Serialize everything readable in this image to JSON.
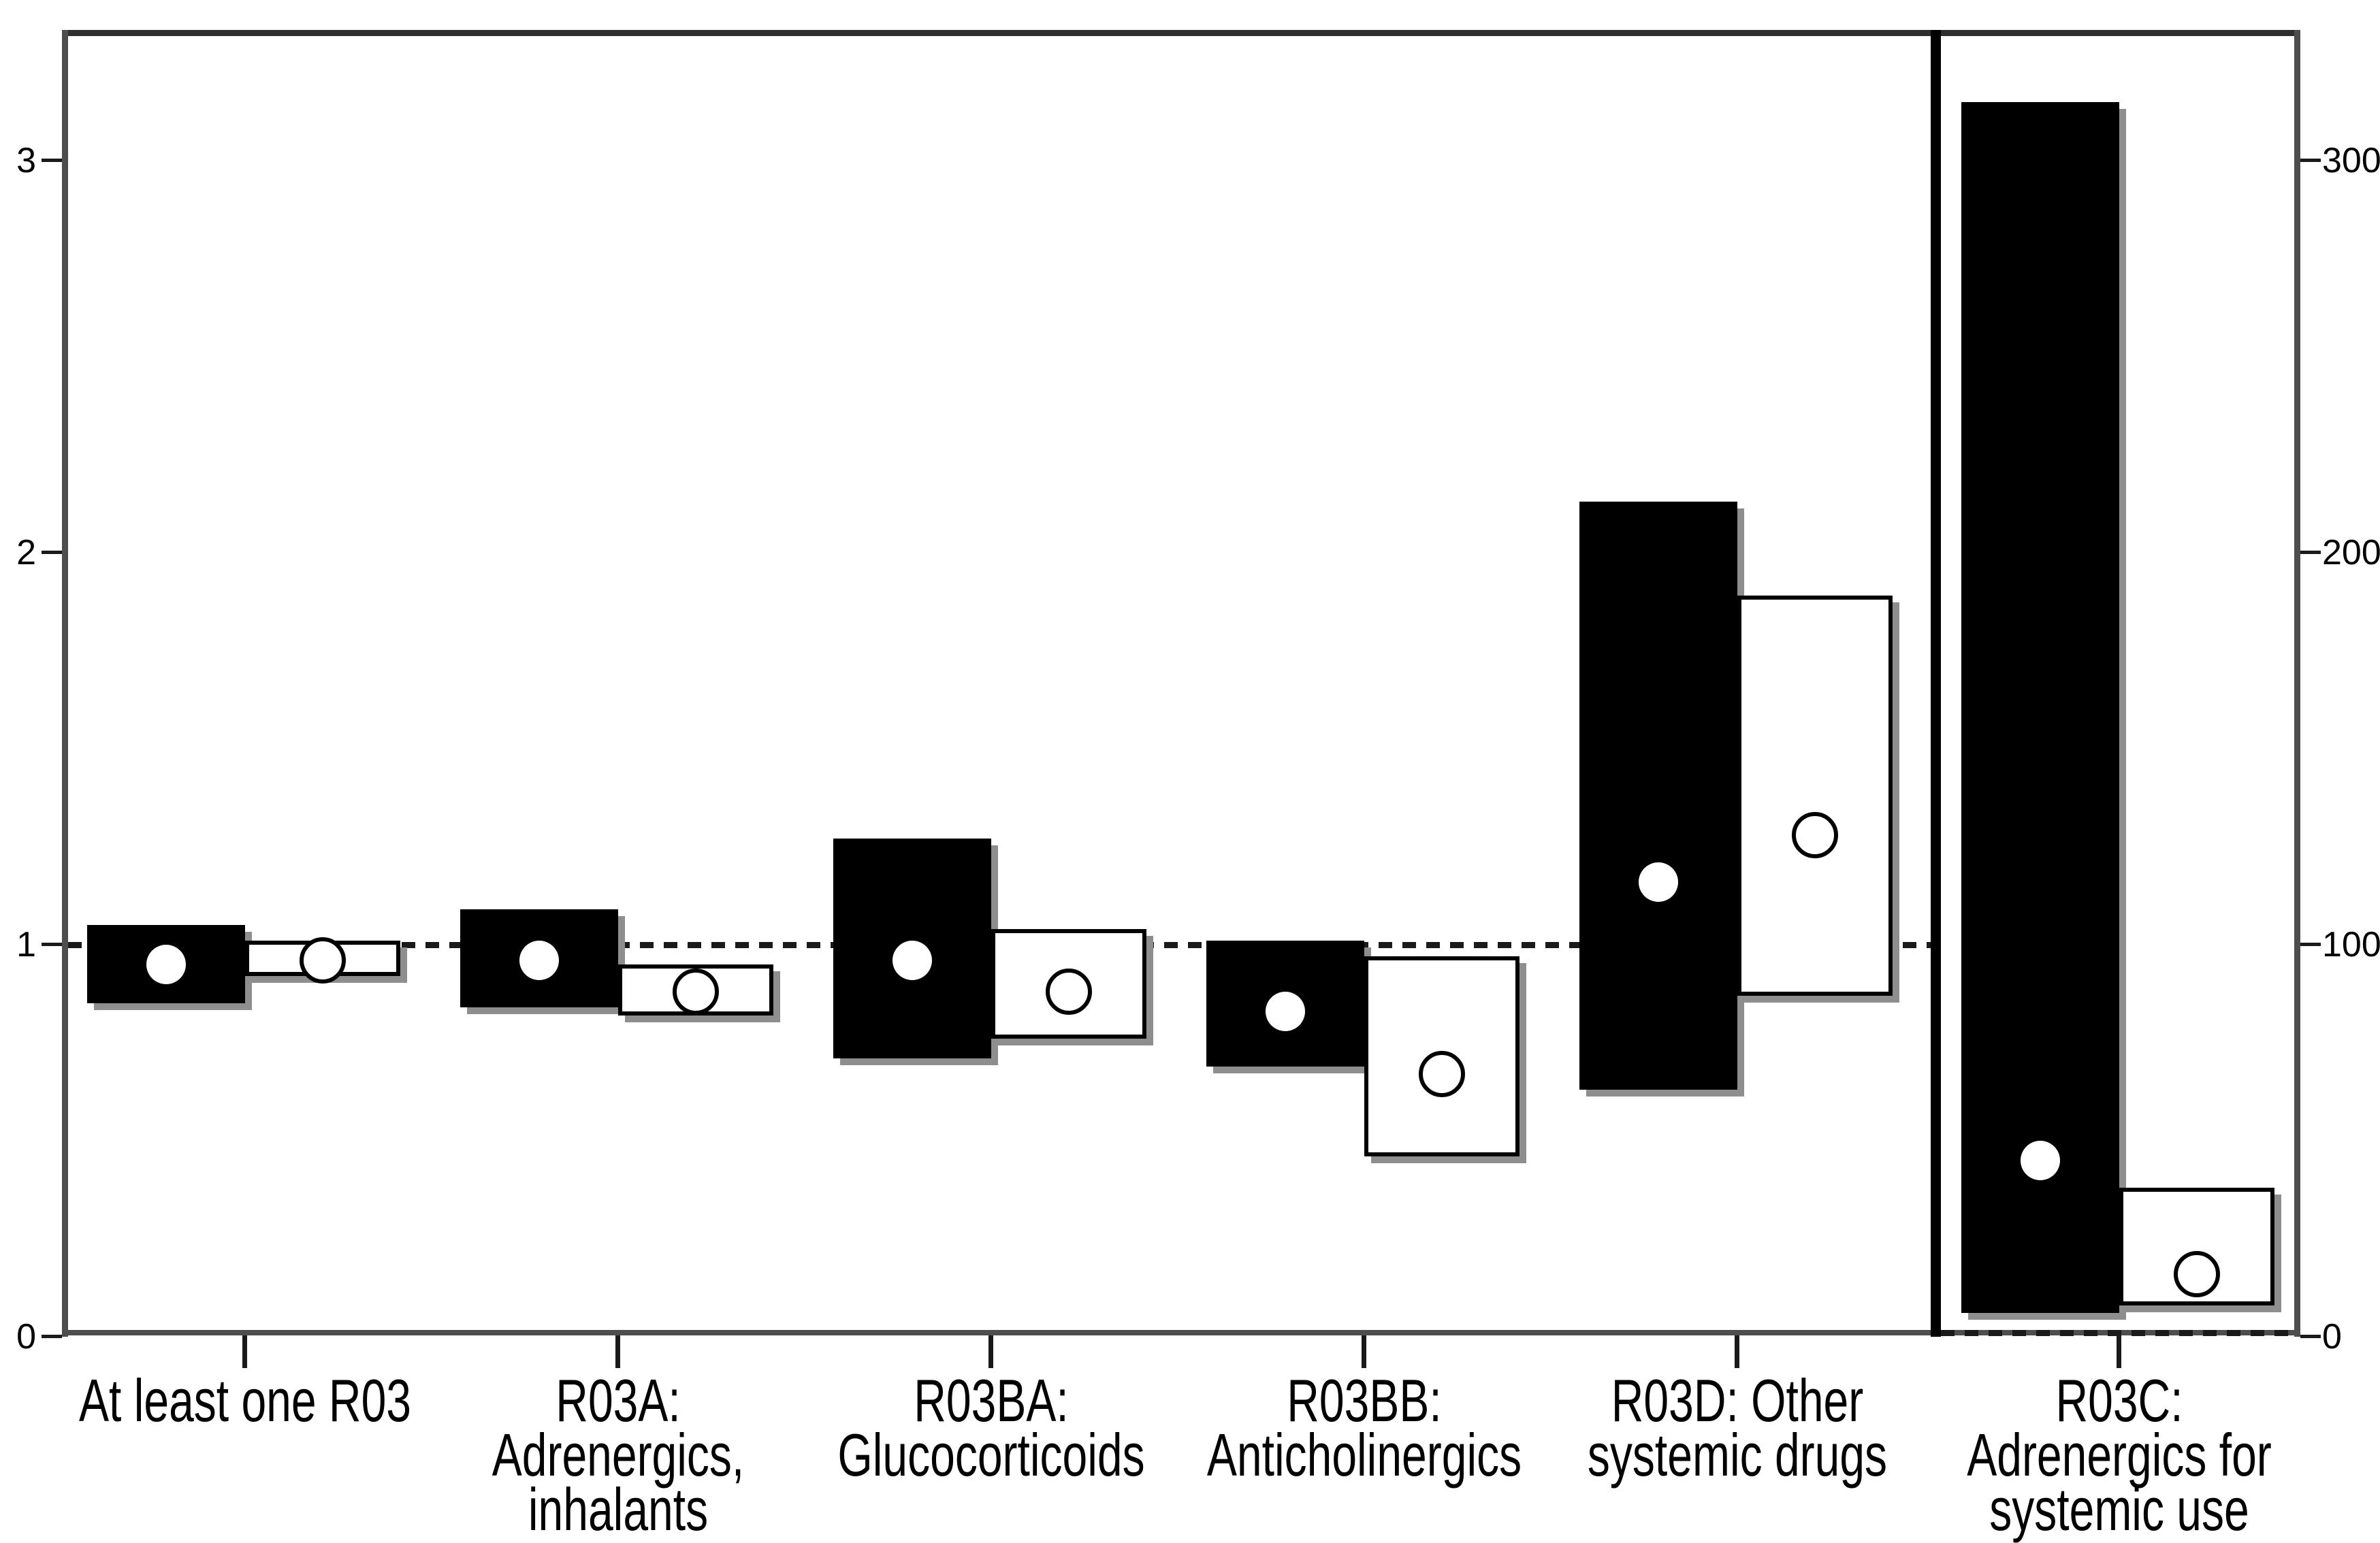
{
  "chart_data": {
    "type": "bar",
    "subtype": "clustered-floating-range-boxes-with-point-markers",
    "title": "",
    "xlabel": "",
    "ylabel": "",
    "grid": false,
    "legend": "none",
    "separate_right_panel_for_last_category": true,
    "reference_line_value": 1,
    "left_axis": {
      "tick_labels": [
        "0",
        "1",
        "2",
        "3"
      ],
      "tick_values": [
        0,
        1,
        2,
        3
      ],
      "range": [
        0,
        3.33
      ]
    },
    "right_axis": {
      "tick_labels": [
        "0",
        "100",
        "200",
        "300"
      ],
      "tick_values": [
        0,
        100,
        200,
        300
      ],
      "range": [
        0,
        333
      ]
    },
    "series": [
      {
        "name": "filled-black-box",
        "marker": "filled white dot",
        "box_fill": "#000000"
      },
      {
        "name": "open-white-box",
        "marker": "open circle",
        "box_fill": "#ffffff"
      }
    ],
    "categories": [
      {
        "label_lines": [
          "At least one R03"
        ],
        "scale": "left",
        "black": {
          "low": 0.85,
          "high": 1.05,
          "point": 0.95
        },
        "white": {
          "low": 0.92,
          "high": 1.01,
          "point": 0.96
        }
      },
      {
        "label_lines": [
          "R03A:",
          "Adrenergics,",
          "inhalants"
        ],
        "scale": "left",
        "black": {
          "low": 0.84,
          "high": 1.09,
          "point": 0.96
        },
        "white": {
          "low": 0.82,
          "high": 0.95,
          "point": 0.88
        }
      },
      {
        "label_lines": [
          "R03BA:",
          "Glucocorticoids"
        ],
        "scale": "left",
        "black": {
          "low": 0.71,
          "high": 1.27,
          "point": 0.96
        },
        "white": {
          "low": 0.76,
          "high": 1.04,
          "point": 0.88
        }
      },
      {
        "label_lines": [
          "R03BB:",
          "Anticholinergics"
        ],
        "scale": "left",
        "black": {
          "low": 0.69,
          "high": 1.01,
          "point": 0.83
        },
        "white": {
          "low": 0.46,
          "high": 0.97,
          "point": 0.67
        }
      },
      {
        "label_lines": [
          "R03D: Other",
          "systemic drugs"
        ],
        "scale": "left",
        "black": {
          "low": 0.63,
          "high": 2.13,
          "point": 1.16
        },
        "white": {
          "low": 0.87,
          "high": 1.89,
          "point": 1.28
        }
      },
      {
        "label_lines": [
          "R03C:",
          "Adrenergics for",
          "systemic use"
        ],
        "scale": "right",
        "black": {
          "low": 6,
          "high": 315,
          "point": 45
        },
        "white": {
          "low": 8,
          "high": 38,
          "point": 16
        }
      }
    ]
  },
  "colors": {
    "background": "#ffffff",
    "black_box": "#000000",
    "white_box_fill": "#ffffff",
    "box_border": "#000000",
    "box_shadow": "#8e8e8e",
    "axis_line": "#4d4d4d",
    "separator": "#000000",
    "reference_line": "#1a1a1a",
    "text": "#000000"
  }
}
